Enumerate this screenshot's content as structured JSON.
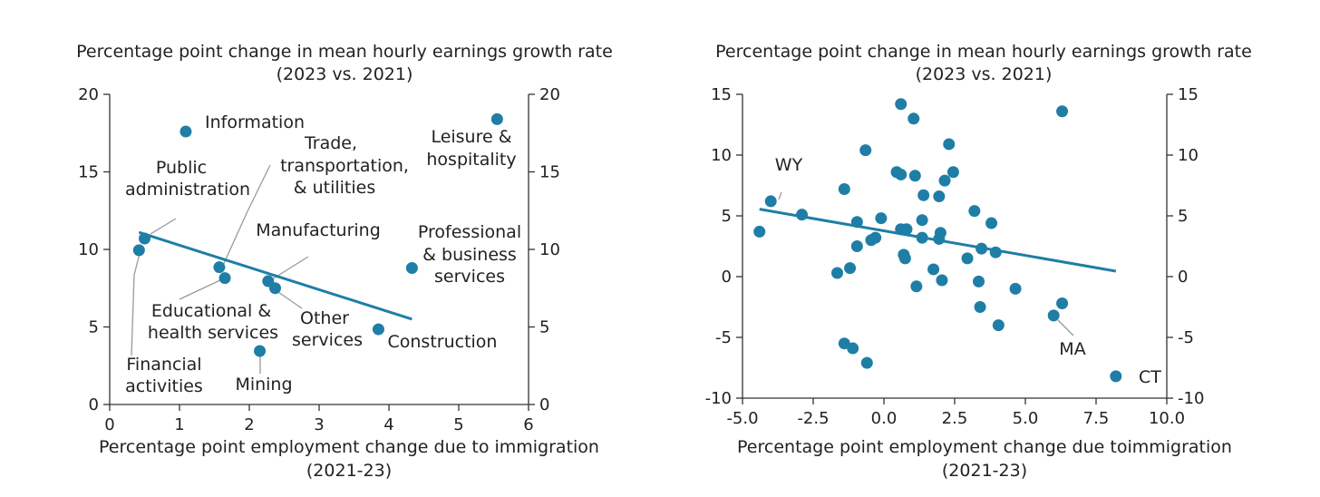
{
  "colors": {
    "marker": "#1f7ea6",
    "trend": "#1f7ea6",
    "axis": "#333333",
    "leader": "#9a9a9a"
  },
  "chart_data": [
    {
      "type": "scatter",
      "title": "Percentage point change in mean hourly earnings growth rate",
      "subtitle": "(2023 vs. 2021)",
      "xlabel": "Percentage point employment change due to immigration",
      "xlabel2": "(2021-23)",
      "ylabel": "",
      "xlim": [
        0,
        6
      ],
      "ylim": [
        0,
        20
      ],
      "xticks": [
        0,
        1,
        2,
        3,
        4,
        5,
        6
      ],
      "xtick_labels": [
        "0",
        "1",
        "2",
        "3",
        "4",
        "5",
        "6"
      ],
      "yticks": [
        0,
        5,
        10,
        15,
        20
      ],
      "ytick_labels": [
        "0",
        "5",
        "10",
        "15",
        "20"
      ],
      "dual_y_axis": true,
      "grid": false,
      "points": [
        {
          "label": "Information",
          "x": 1.09,
          "y": 17.6
        },
        {
          "label": "Leisure & hospitality",
          "x": 5.55,
          "y": 18.4
        },
        {
          "label": "Public administration",
          "x": 0.5,
          "y": 10.7
        },
        {
          "label": "Financial activities",
          "x": 0.42,
          "y": 9.95
        },
        {
          "label": "Trade, transportation, & utilities",
          "x": 1.57,
          "y": 8.85
        },
        {
          "label": "Educational & health services",
          "x": 1.65,
          "y": 8.15
        },
        {
          "label": "Manufacturing",
          "x": 2.27,
          "y": 7.95
        },
        {
          "label": "Other services",
          "x": 2.37,
          "y": 7.5
        },
        {
          "label": "Mining",
          "x": 2.15,
          "y": 3.45
        },
        {
          "label": "Construction",
          "x": 3.85,
          "y": 4.85
        },
        {
          "label": "Professional & business services",
          "x": 4.33,
          "y": 8.8
        }
      ],
      "trendline": {
        "x": [
          0.42,
          4.33
        ],
        "y": [
          11.1,
          5.5
        ]
      }
    },
    {
      "type": "scatter",
      "title": "Percentage point change in mean hourly earnings growth rate",
      "subtitle": "(2023 vs. 2021)",
      "xlabel": "Percentage point employment change due toimmigration",
      "xlabel2": "(2021-23)",
      "ylabel": "",
      "xlim": [
        -5,
        10
      ],
      "ylim": [
        -10,
        15
      ],
      "xticks": [
        -5,
        -2.5,
        0,
        2.5,
        5,
        7.5,
        10
      ],
      "xtick_labels": [
        "-5.0",
        "-2.5",
        "0.0",
        "2.5",
        "5.0",
        "7.5",
        "10.0"
      ],
      "yticks": [
        -10,
        -5,
        0,
        5,
        10,
        15
      ],
      "ytick_labels": [
        "-10",
        "-5",
        "0",
        "5",
        "10",
        "15"
      ],
      "dual_y_axis": true,
      "grid": false,
      "points": [
        {
          "label": "WY",
          "x": -4.0,
          "y": 6.2
        },
        {
          "label": "",
          "x": -4.4,
          "y": 3.7
        },
        {
          "label": "",
          "x": -2.9,
          "y": 5.1
        },
        {
          "label": "",
          "x": 0.6,
          "y": 14.2
        },
        {
          "label": "",
          "x": 1.05,
          "y": 13.0
        },
        {
          "label": "",
          "x": -0.65,
          "y": 10.4
        },
        {
          "label": "",
          "x": 2.3,
          "y": 10.9
        },
        {
          "label": "",
          "x": 0.45,
          "y": 8.6
        },
        {
          "label": "",
          "x": 0.6,
          "y": 8.4
        },
        {
          "label": "",
          "x": 1.1,
          "y": 8.3
        },
        {
          "label": "",
          "x": 2.45,
          "y": 8.6
        },
        {
          "label": "",
          "x": 2.15,
          "y": 7.9
        },
        {
          "label": "",
          "x": -1.4,
          "y": 7.2
        },
        {
          "label": "",
          "x": 1.4,
          "y": 6.7
        },
        {
          "label": "",
          "x": 1.95,
          "y": 6.6
        },
        {
          "label": "",
          "x": 3.2,
          "y": 5.4
        },
        {
          "label": "",
          "x": -0.1,
          "y": 4.8
        },
        {
          "label": "",
          "x": -0.95,
          "y": 4.5
        },
        {
          "label": "",
          "x": 1.35,
          "y": 4.65
        },
        {
          "label": "",
          "x": 3.8,
          "y": 4.4
        },
        {
          "label": "",
          "x": 0.6,
          "y": 3.9
        },
        {
          "label": "",
          "x": 0.8,
          "y": 3.9
        },
        {
          "label": "",
          "x": 2.0,
          "y": 3.6
        },
        {
          "label": "",
          "x": -0.3,
          "y": 3.2
        },
        {
          "label": "",
          "x": -0.45,
          "y": 3.0
        },
        {
          "label": "",
          "x": 1.35,
          "y": 3.2
        },
        {
          "label": "",
          "x": 1.95,
          "y": 3.1
        },
        {
          "label": "",
          "x": -0.95,
          "y": 2.5
        },
        {
          "label": "",
          "x": 3.45,
          "y": 2.3
        },
        {
          "label": "",
          "x": 3.95,
          "y": 2.0
        },
        {
          "label": "",
          "x": 0.7,
          "y": 1.8
        },
        {
          "label": "",
          "x": 0.75,
          "y": 1.5
        },
        {
          "label": "",
          "x": 2.95,
          "y": 1.5
        },
        {
          "label": "",
          "x": -1.2,
          "y": 0.7
        },
        {
          "label": "",
          "x": 1.75,
          "y": 0.6
        },
        {
          "label": "",
          "x": -1.65,
          "y": 0.3
        },
        {
          "label": "",
          "x": 2.05,
          "y": -0.3
        },
        {
          "label": "",
          "x": 3.35,
          "y": -0.4
        },
        {
          "label": "",
          "x": 1.15,
          "y": -0.8
        },
        {
          "label": "",
          "x": 4.65,
          "y": -1.0
        },
        {
          "label": "",
          "x": 6.3,
          "y": -2.2
        },
        {
          "label": "",
          "x": 3.4,
          "y": -2.5
        },
        {
          "label": "MA",
          "x": 6.0,
          "y": -3.2
        },
        {
          "label": "",
          "x": 4.05,
          "y": -4.0
        },
        {
          "label": "",
          "x": -1.4,
          "y": -5.5
        },
        {
          "label": "",
          "x": -1.1,
          "y": -5.9
        },
        {
          "label": "",
          "x": -0.6,
          "y": -7.1
        },
        {
          "label": "",
          "x": 6.3,
          "y": 13.6
        },
        {
          "label": "CT",
          "x": 8.2,
          "y": -8.2
        }
      ],
      "trendline": {
        "x": [
          -4.4,
          8.2
        ],
        "y": [
          5.55,
          0.45
        ]
      }
    }
  ]
}
